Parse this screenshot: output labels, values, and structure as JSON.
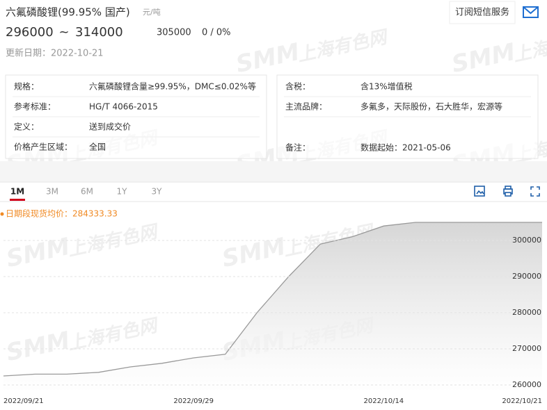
{
  "header": {
    "title": "六氟磷酸锂(99.95% 国产)",
    "unit": "元/吨",
    "subscribe": "订阅短信服务",
    "price": {
      "low": 296000,
      "separator": "~",
      "high": 314000,
      "mid": 305000,
      "change": "0 / 0%"
    },
    "updated": "更新日期：2022-10-21"
  },
  "info": {
    "left": [
      [
        "规格：",
        "六氟磷酸锂含量≥99.95%，DMC≤0.02%等"
      ],
      [
        "参考标准：",
        "HG/T 4066-2015"
      ],
      [
        "定义：",
        "送到成交价"
      ],
      [
        "价格产生区域：",
        "全国"
      ]
    ],
    "right": [
      [
        "含税：",
        "含13%增值税"
      ],
      [
        "主流品牌：",
        "多氟多，天际股份，石大胜华，宏源等"
      ],
      [
        "备注：",
        "数据起始：2021-05-06"
      ]
    ]
  },
  "tabs": {
    "items": [
      "1M",
      "3M",
      "6M",
      "1Y",
      "3Y"
    ],
    "active": 0
  },
  "watermark": {
    "logo": "SMM",
    "text": "上海有色网"
  },
  "chart_data": {
    "type": "area",
    "categories": [
      "2022/09/21",
      null,
      null,
      null,
      null,
      null,
      "2022/09/29",
      null,
      null,
      null,
      null,
      null,
      "2022/10/14",
      null,
      null,
      null,
      null,
      "2022/10/21"
    ],
    "series": [
      {
        "name": "日期段现货均价：284333.33",
        "color": "#999999",
        "legend_color": "#f08a24",
        "values": [
          262500,
          263000,
          263000,
          263500,
          265000,
          266000,
          267500,
          268500,
          280000,
          290000,
          299000,
          301000,
          304000,
          305000,
          305000,
          305000,
          305000,
          305000
        ]
      }
    ],
    "ylim": [
      258000,
      310000
    ],
    "yticks": [
      260000,
      270000,
      280000,
      290000,
      300000
    ],
    "grid": true,
    "area_color": "#d6d6d6"
  }
}
